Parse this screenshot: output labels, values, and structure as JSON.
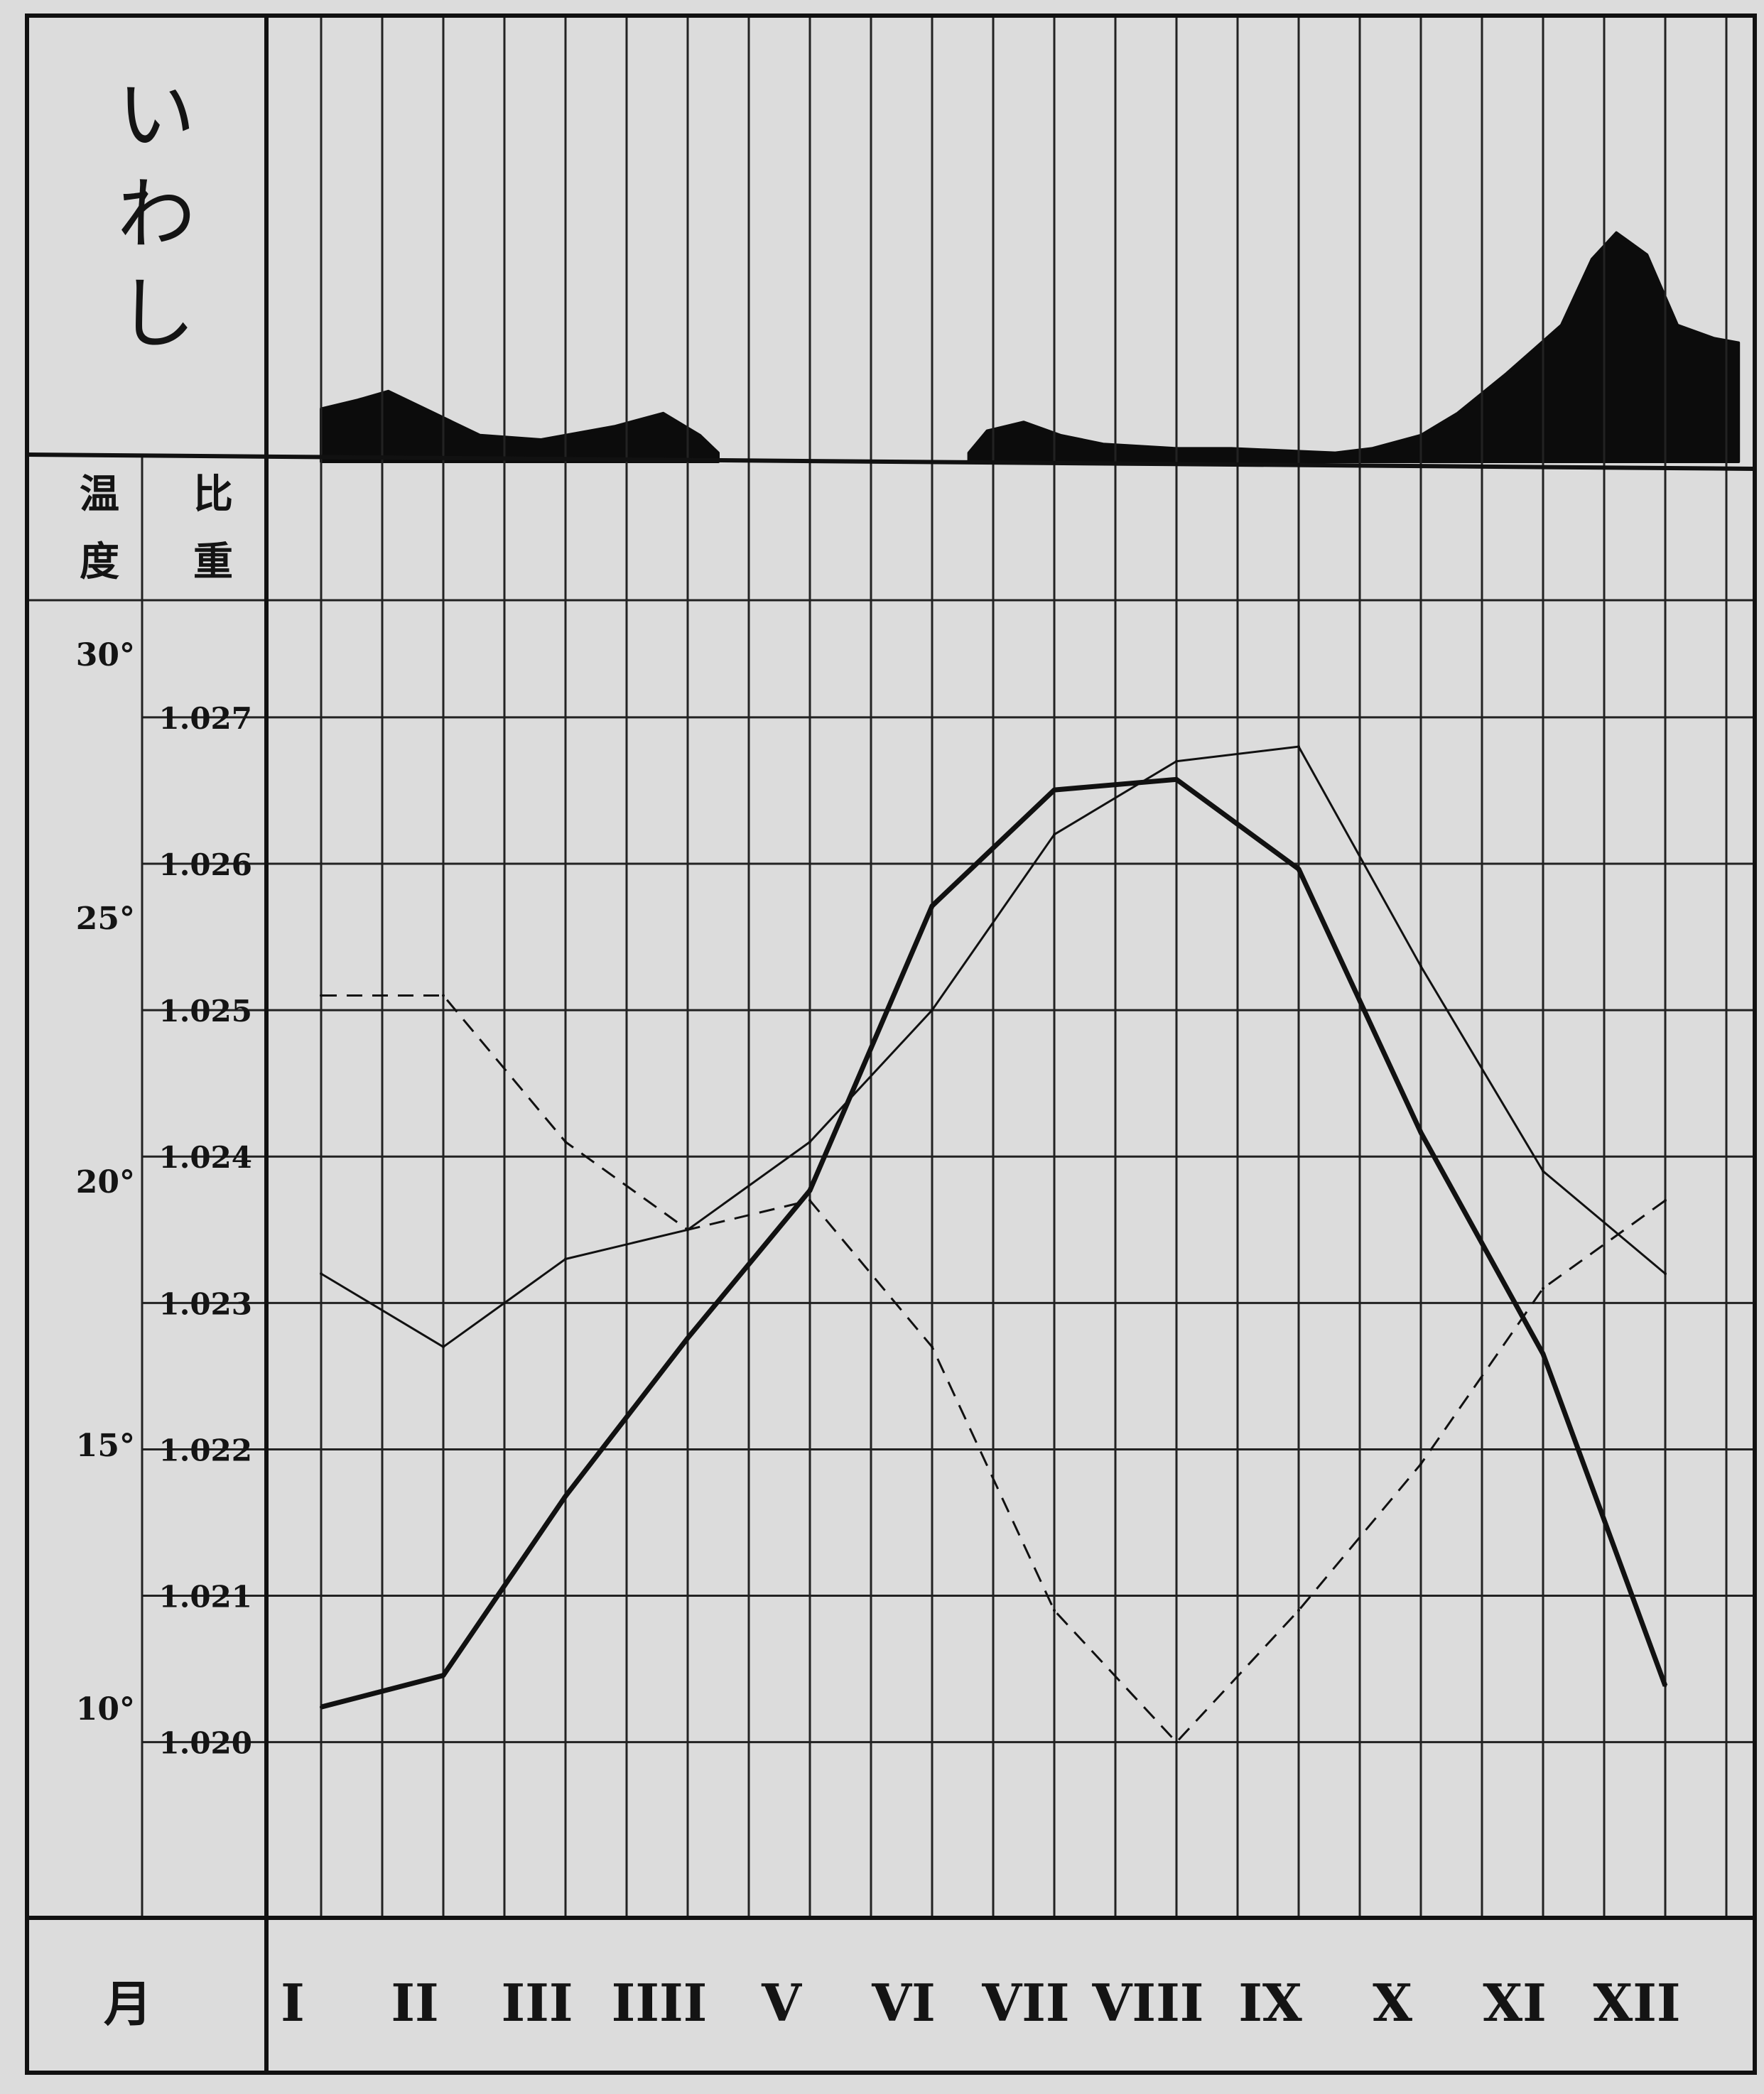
{
  "chart_data": {
    "type": "line",
    "title": "いわし",
    "title_chars": [
      "い",
      "わ",
      "し"
    ],
    "xlabel": "月",
    "categories": [
      "I",
      "II",
      "III",
      "IIII",
      "V",
      "VI",
      "VII",
      "VIII",
      "IX",
      "X",
      "XI",
      "XII"
    ],
    "left_axis": {
      "label_chars": [
        "温",
        "度"
      ],
      "ticks": [
        10,
        15,
        20,
        25,
        30
      ],
      "tick_labels": [
        "10°",
        "15°",
        "20°",
        "25°",
        "30°"
      ],
      "ylim": [
        6,
        31
      ]
    },
    "right_axis": {
      "label_chars": [
        "比",
        "重"
      ],
      "ticks": [
        1.02,
        1.021,
        1.022,
        1.023,
        1.024,
        1.025,
        1.026,
        1.027
      ],
      "tick_labels": [
        "1.020",
        "1.021",
        "1.022",
        "1.023",
        "1.024",
        "1.025",
        "1.026",
        "1.027"
      ],
      "ylim": [
        1.0188,
        1.0278
      ]
    },
    "catch_profile": {
      "description_hidden": true,
      "ylim": [
        0,
        100
      ],
      "values": [
        [
          0.0,
          12
        ],
        [
          0.3,
          14
        ],
        [
          0.55,
          16
        ],
        [
          0.85,
          12
        ],
        [
          1.3,
          6
        ],
        [
          1.8,
          5
        ],
        [
          2.4,
          8
        ],
        [
          2.8,
          11
        ],
        [
          3.1,
          6
        ],
        [
          3.25,
          2
        ],
        [
          5.3,
          2
        ],
        [
          5.45,
          7
        ],
        [
          5.75,
          9
        ],
        [
          6.05,
          6
        ],
        [
          6.4,
          4
        ],
        [
          7.0,
          3
        ],
        [
          7.45,
          3
        ],
        [
          8.3,
          2
        ],
        [
          8.6,
          3
        ],
        [
          9.0,
          6
        ],
        [
          9.3,
          11
        ],
        [
          9.7,
          20
        ],
        [
          10.15,
          31
        ],
        [
          10.4,
          46
        ],
        [
          10.6,
          52
        ],
        [
          10.85,
          47
        ],
        [
          11.1,
          31
        ],
        [
          11.4,
          28
        ],
        [
          11.6,
          27
        ]
      ]
    },
    "series": [
      {
        "axis": "left",
        "style": "thick",
        "values": [
          10.0,
          10.6,
          14.0,
          17.0,
          19.8,
          25.2,
          27.4,
          27.6,
          25.9,
          20.9,
          16.7,
          10.4
        ]
      },
      {
        "axis": "right",
        "style": "thin",
        "values": [
          1.0232,
          1.0227,
          1.0233,
          1.0235,
          1.0241,
          1.025,
          1.0262,
          1.0267,
          1.0268,
          1.0253,
          1.0239,
          1.0232
        ]
      },
      {
        "axis": "right",
        "style": "dashed",
        "values": [
          1.0251,
          1.0251,
          1.0241,
          1.0235,
          1.0237,
          1.0227,
          1.0209,
          1.02,
          1.0209,
          1.0219,
          1.0231,
          1.0237
        ]
      }
    ]
  }
}
